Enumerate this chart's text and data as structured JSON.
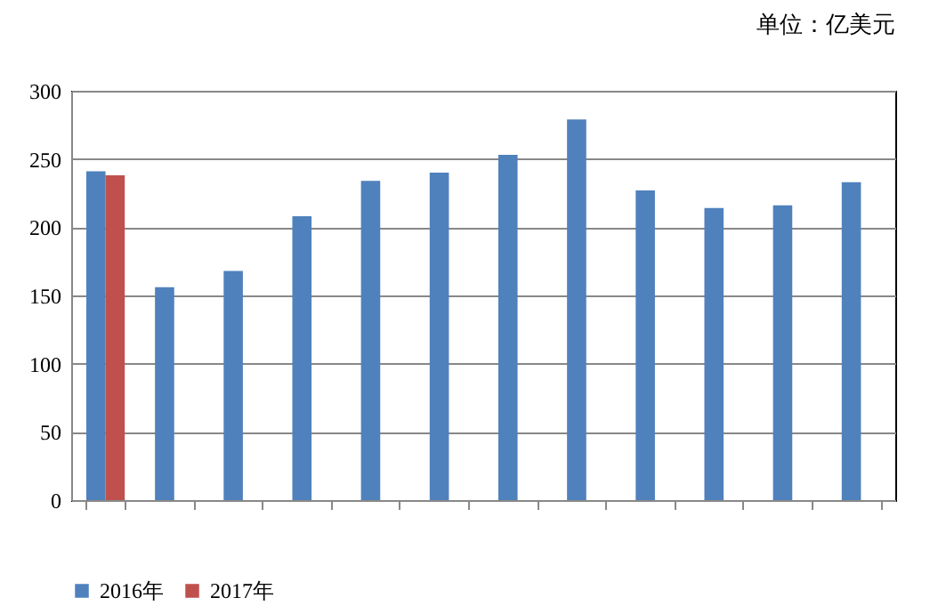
{
  "chart_data": {
    "type": "bar",
    "annotations": [
      "单位：亿美元"
    ],
    "categories": [
      null,
      null,
      null,
      null,
      null,
      null,
      null,
      null,
      null,
      null,
      null,
      null
    ],
    "series": [
      {
        "name": "2016年",
        "color": "#4f81bd",
        "values": [
          241,
          156,
          168,
          208,
          234,
          240,
          253,
          279,
          227,
          214,
          216,
          233
        ]
      },
      {
        "name": "2017年",
        "color": "#c0504d",
        "values": [
          238,
          null,
          null,
          null,
          null,
          null,
          null,
          null,
          null,
          null,
          null,
          null
        ]
      }
    ],
    "ylim": [
      0,
      300
    ],
    "yticks": [
      0,
      50,
      100,
      150,
      200,
      250,
      300
    ],
    "grid": "y",
    "legend": "bottom"
  }
}
